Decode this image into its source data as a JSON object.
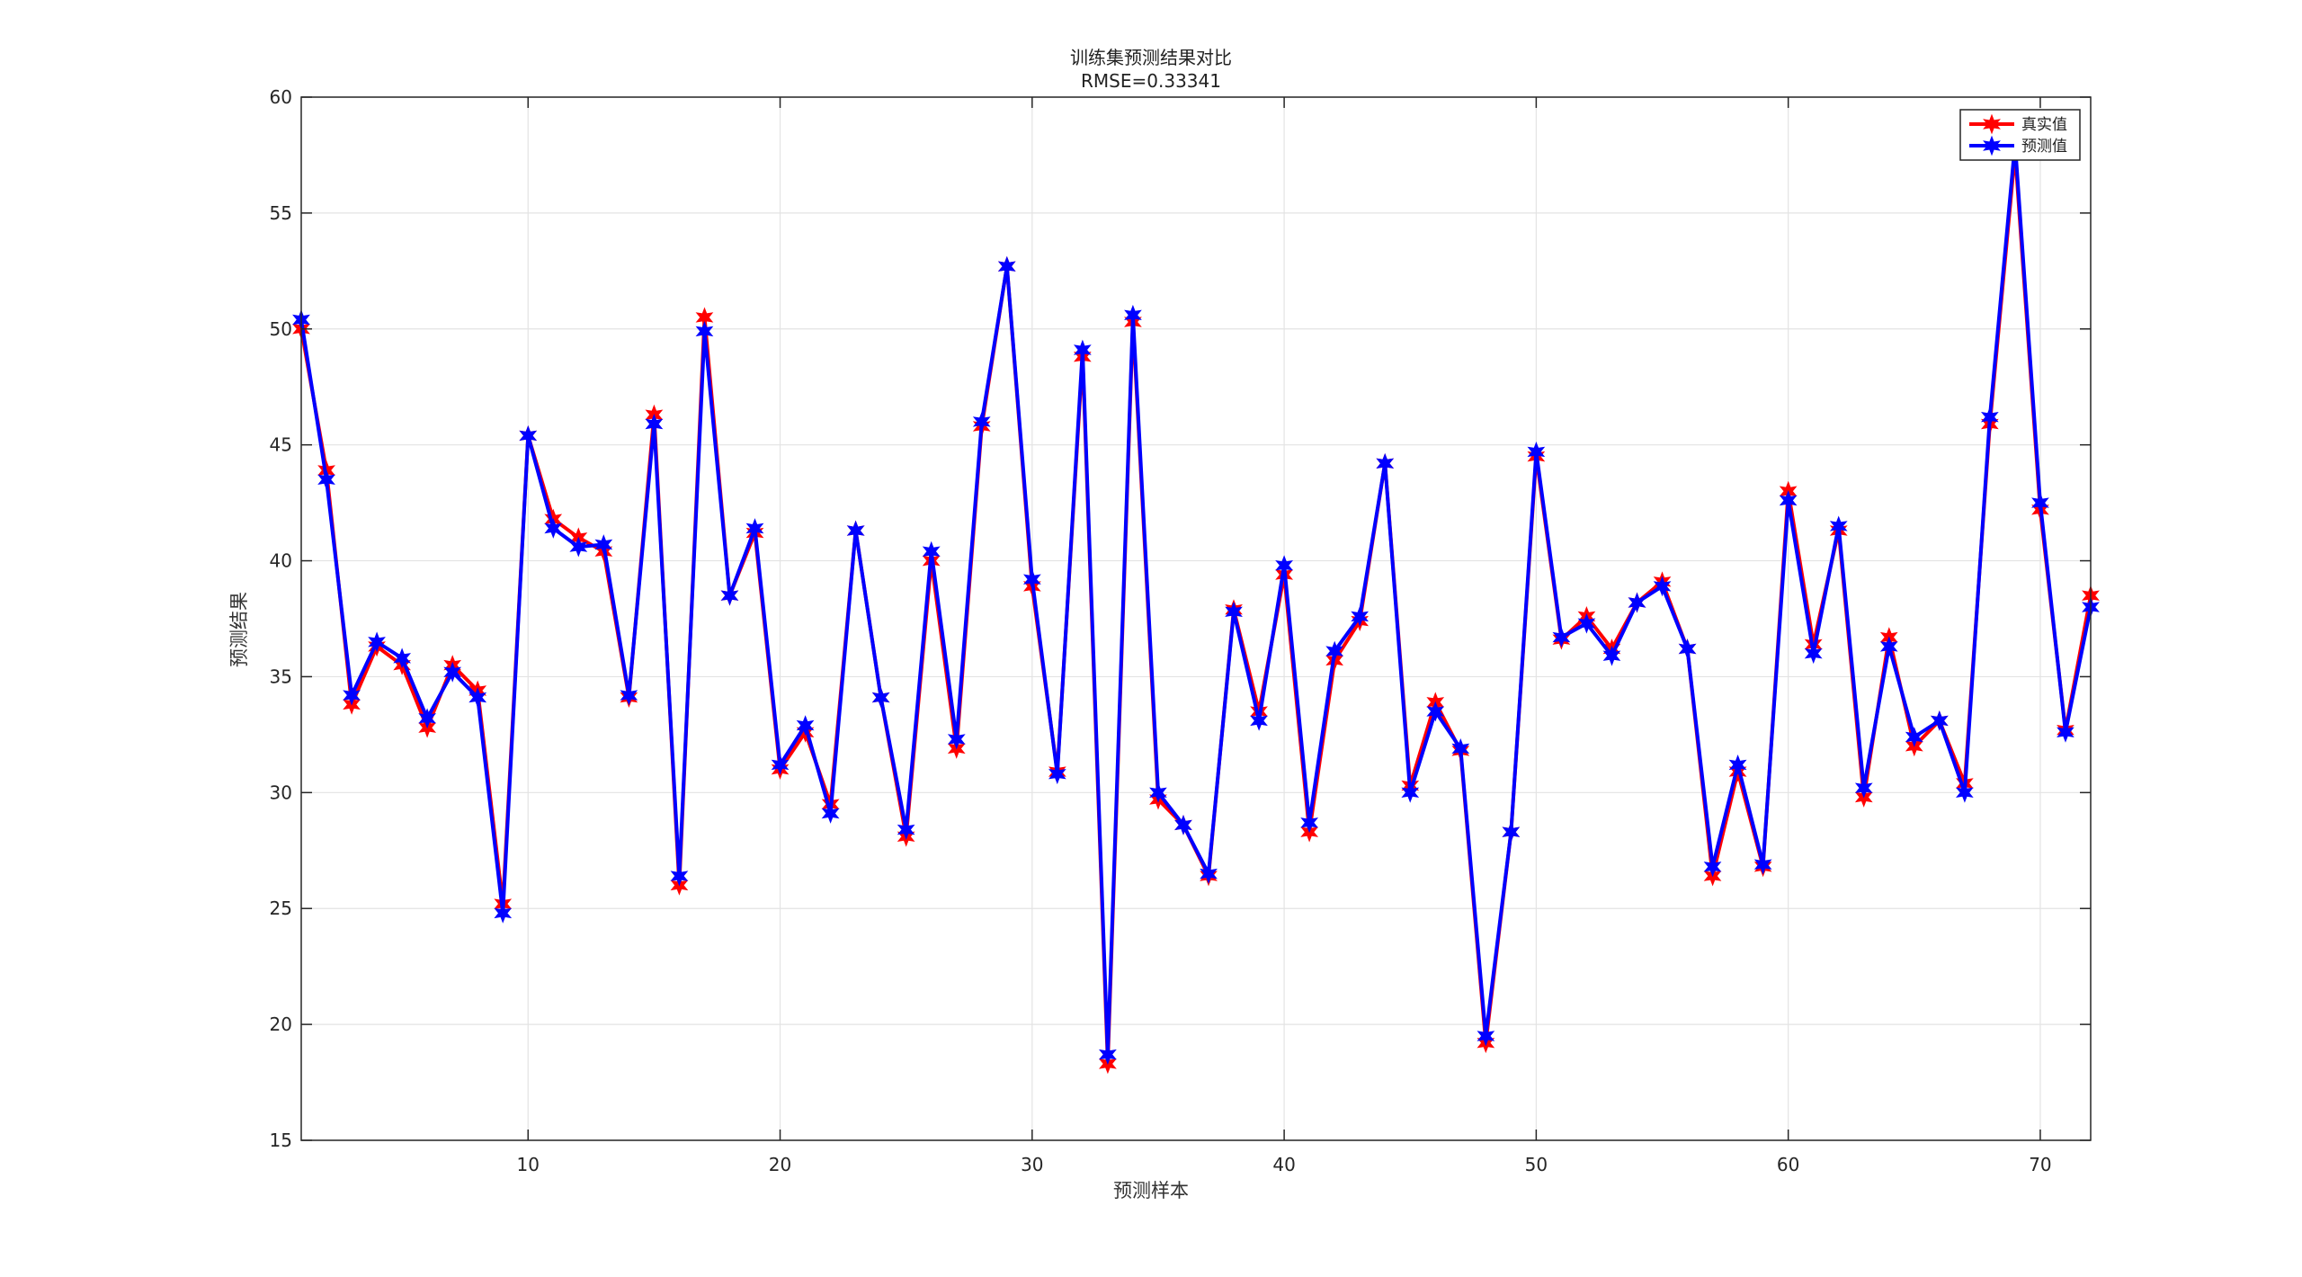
{
  "chart_data": {
    "type": "line",
    "title": "训练集预测结果对比",
    "subtitle": "RMSE=0.33341",
    "xlabel": "预测样本",
    "ylabel": "预测结果",
    "xlim": [
      1,
      72
    ],
    "ylim": [
      15,
      60
    ],
    "xticks": [
      10,
      20,
      30,
      40,
      50,
      60,
      70
    ],
    "yticks": [
      15,
      20,
      25,
      30,
      35,
      40,
      45,
      50,
      55,
      60
    ],
    "grid": true,
    "legend_position": "top-right",
    "x": [
      1,
      2,
      3,
      4,
      5,
      6,
      7,
      8,
      9,
      10,
      11,
      12,
      13,
      14,
      15,
      16,
      17,
      18,
      19,
      20,
      21,
      22,
      23,
      24,
      25,
      26,
      27,
      28,
      29,
      30,
      31,
      32,
      33,
      34,
      35,
      36,
      37,
      38,
      39,
      40,
      41,
      42,
      43,
      44,
      45,
      46,
      47,
      48,
      49,
      50,
      51,
      52,
      53,
      54,
      55,
      56,
      57,
      58,
      59,
      60,
      61,
      62,
      63,
      64,
      65,
      66,
      67,
      68,
      69,
      70,
      71,
      72
    ],
    "series": [
      {
        "name": "真实值",
        "color": "#ff0000",
        "values": [
          50.0,
          43.9,
          33.8,
          36.3,
          35.5,
          32.8,
          35.5,
          34.4,
          25.2,
          45.4,
          41.8,
          41.0,
          40.4,
          34.1,
          46.3,
          26.0,
          50.5,
          38.5,
          41.2,
          31.0,
          32.6,
          29.5,
          41.3,
          34.1,
          28.1,
          40.0,
          31.9,
          45.8,
          52.7,
          38.9,
          30.9,
          48.8,
          18.3,
          50.3,
          29.7,
          28.6,
          26.4,
          37.9,
          33.5,
          39.4,
          28.3,
          35.7,
          37.4,
          44.2,
          30.3,
          33.9,
          31.8,
          19.2,
          28.3,
          44.5,
          36.6,
          37.6,
          36.2,
          38.2,
          39.1,
          36.2,
          26.4,
          30.9,
          26.8,
          43.0,
          36.4,
          41.3,
          29.8,
          36.7,
          32.0,
          33.1,
          30.4,
          45.9,
          57.6,
          42.2,
          32.7,
          38.5
        ]
      },
      {
        "name": "预测值",
        "color": "#0000ff",
        "values": [
          50.4,
          43.5,
          34.2,
          36.5,
          35.8,
          33.2,
          35.2,
          34.1,
          24.8,
          45.4,
          41.4,
          40.6,
          40.7,
          34.2,
          45.9,
          26.4,
          49.9,
          38.5,
          41.4,
          31.2,
          32.9,
          29.1,
          41.3,
          34.1,
          28.4,
          40.4,
          32.3,
          46.0,
          52.7,
          39.2,
          30.8,
          49.1,
          18.7,
          50.6,
          30.0,
          28.6,
          26.5,
          37.8,
          33.1,
          39.8,
          28.7,
          36.1,
          37.6,
          44.2,
          30.0,
          33.5,
          31.9,
          19.5,
          28.3,
          44.7,
          36.7,
          37.3,
          35.9,
          38.2,
          38.9,
          36.2,
          26.8,
          31.2,
          26.9,
          42.6,
          36.0,
          41.5,
          30.2,
          36.3,
          32.4,
          33.1,
          30.0,
          46.2,
          58.0,
          42.5,
          32.6,
          38.0
        ]
      }
    ]
  }
}
